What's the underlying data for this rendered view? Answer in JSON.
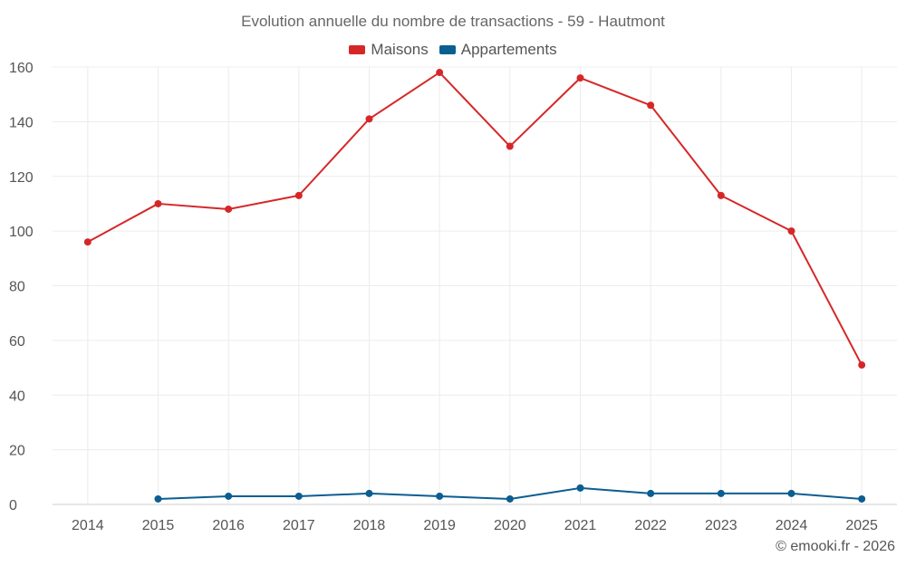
{
  "chart_data": {
    "type": "line",
    "title": "Evolution annuelle du nombre de transactions - 59 - Hautmont",
    "xlabel": "",
    "ylabel": "",
    "categories": [
      "2014",
      "2015",
      "2016",
      "2017",
      "2018",
      "2019",
      "2020",
      "2021",
      "2022",
      "2023",
      "2024",
      "2025"
    ],
    "ylim": [
      0,
      160
    ],
    "yticks": [
      0,
      20,
      40,
      60,
      80,
      100,
      120,
      140,
      160
    ],
    "grid": true,
    "legend_position": "top-center",
    "series": [
      {
        "name": "Maisons",
        "color": "#d62728",
        "values": [
          96,
          110,
          108,
          113,
          141,
          158,
          131,
          156,
          146,
          113,
          100,
          51
        ]
      },
      {
        "name": "Appartements",
        "color": "#0b5e91",
        "values": [
          null,
          2,
          3,
          3,
          4,
          3,
          2,
          6,
          4,
          4,
          4,
          2
        ]
      }
    ]
  },
  "footer": "© emooki.fr - 2026"
}
